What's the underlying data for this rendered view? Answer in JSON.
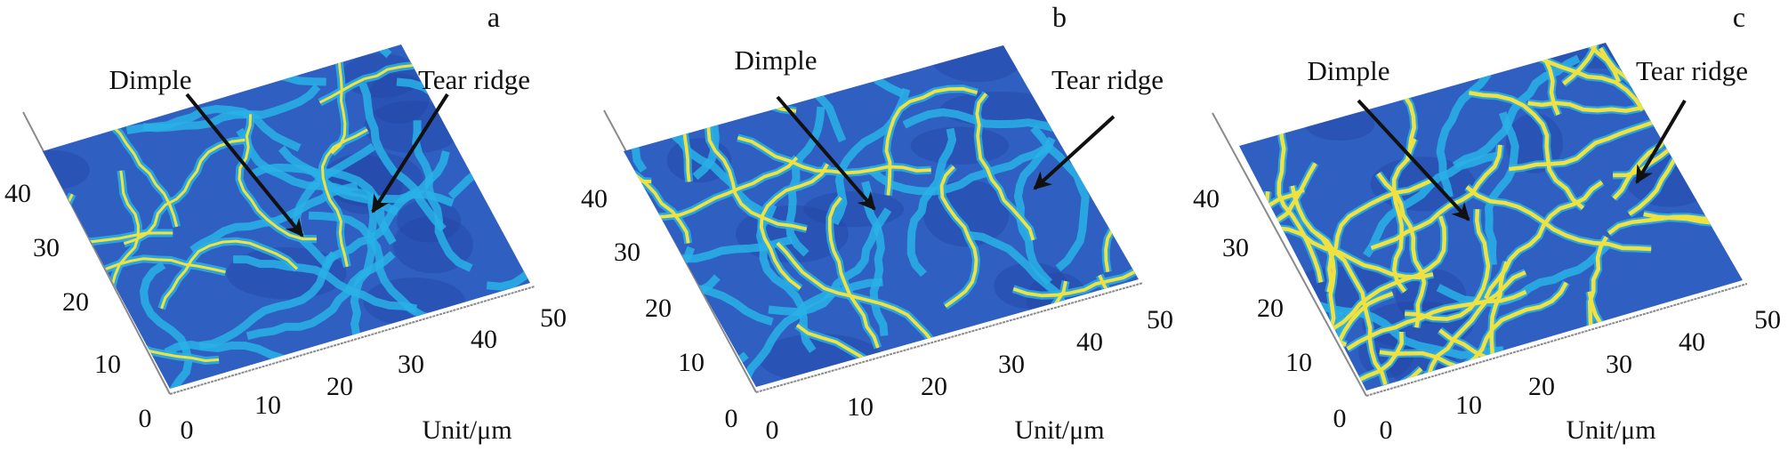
{
  "colors": {
    "low": "#2f5fc0",
    "mid": "#28b2e8",
    "high": "#f0e040",
    "axis": "#8a8a8a",
    "arrow": "#111111"
  },
  "chart_data": [
    {
      "type": "surface",
      "panel_label": "a",
      "colormap": "parula",
      "xlabel": "Unit/μm",
      "x_ticks": [
        "0",
        "10",
        "20",
        "30",
        "40",
        "50"
      ],
      "y_ticks": [
        "0",
        "10",
        "20",
        "30",
        "40"
      ],
      "xlim": [
        0,
        50
      ],
      "ylim": [
        0,
        50
      ],
      "annotations": [
        {
          "text": "Dimple"
        },
        {
          "text": "Tear ridge"
        }
      ],
      "ridge_level": 0.35
    },
    {
      "type": "surface",
      "panel_label": "b",
      "colormap": "parula",
      "xlabel": "Unit/μm",
      "x_ticks": [
        "0",
        "10",
        "20",
        "30",
        "40",
        "50"
      ],
      "y_ticks": [
        "0",
        "10",
        "20",
        "30",
        "40"
      ],
      "xlim": [
        0,
        50
      ],
      "ylim": [
        0,
        50
      ],
      "annotations": [
        {
          "text": "Dimple"
        },
        {
          "text": "Tear ridge"
        }
      ],
      "ridge_level": 0.6
    },
    {
      "type": "surface",
      "panel_label": "c",
      "colormap": "parula",
      "xlabel": "Unit/μm",
      "x_ticks": [
        "0",
        "10",
        "20",
        "30",
        "40",
        "50"
      ],
      "y_ticks": [
        "0",
        "10",
        "20",
        "30",
        "40"
      ],
      "xlim": [
        0,
        50
      ],
      "ylim": [
        0,
        50
      ],
      "annotations": [
        {
          "text": "Dimple"
        },
        {
          "text": "Tear ridge"
        }
      ],
      "ridge_level": 0.85
    }
  ]
}
